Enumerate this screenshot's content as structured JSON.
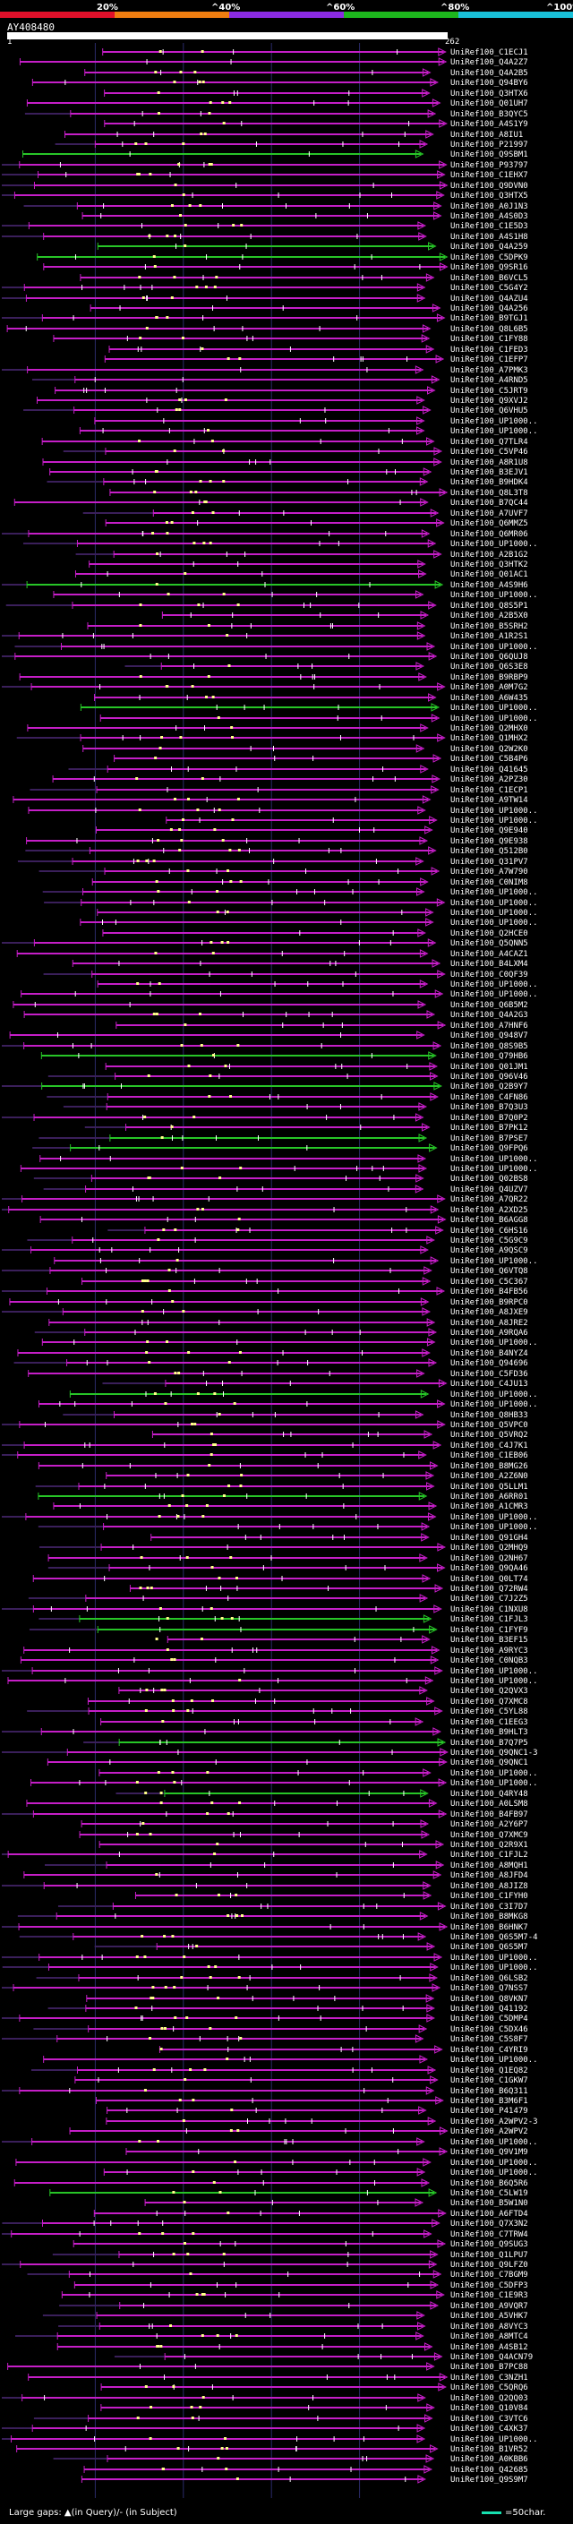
{
  "query": {
    "id": "AY408480",
    "start": "1",
    "end": "262"
  },
  "scale": {
    "ticks": [
      "20%",
      "^40%",
      "^60%",
      "^80%",
      "^100%"
    ],
    "colors": [
      "#e0102a",
      "#ef7d10",
      "#8b2be2",
      "#1db71d",
      "#19c0d8"
    ]
  },
  "colors": {
    "hit_line": "#c51ec7",
    "best_line": "#27c527",
    "insert": "#ffff88",
    "gap": "#ffffff"
  },
  "legend": {
    "left": "Large gaps: ▲(in Query)/- (in Subject)",
    "right": "=50char."
  },
  "hits": [
    "UniRef100_C1ECJ1",
    "UniRef100_Q4A2Z7",
    "UniRef100_Q4A2B5",
    "UniRef100_Q94BY6",
    "UniRef100_Q3HTX6",
    "UniRef100_Q01UH7",
    "UniRef100_B3QYC5",
    "UniRef100_A4S1Y9",
    "UniRef100_A8IU1",
    "UniRef100_P21997",
    "UniRef100_Q9SBM1",
    "UniRef100_P93797",
    "UniRef100_C1EHX7",
    "UniRef100_Q9DVN0",
    "UniRef100_Q3HTX5",
    "UniRef100_A0J1N3",
    "UniRef100_A4S0D3",
    "UniRef100_C1E5D3",
    "UniRef100_A4S1H8",
    "UniRef100_Q4A259",
    "UniRef100_C5DPK9",
    "UniRef100_Q9SR16",
    "UniRef100_B6VCL5",
    "UniRef100_C5G4Y2",
    "UniRef100_Q4AZU4",
    "UniRef100_Q4A256",
    "UniRef100_B9TGJ1",
    "UniRef100_Q8L6B5",
    "UniRef100_C1FY88",
    "UniRef100_C1FED3",
    "UniRef100_C1EFP7",
    "UniRef100_A7PMK3",
    "UniRef100_A4RND5",
    "UniRef100_C5JRT9",
    "UniRef100_Q9XVJ2",
    "UniRef100_Q6VHU5",
    "UniRef100_UP1000..",
    "UniRef100_UP1000..",
    "UniRef100_Q7TLR4",
    "UniRef100_C5VP46",
    "UniRef100_A8R1U8",
    "UniRef100_B3EJV1",
    "UniRef100_B9HDK4",
    "UniRef100_Q8L3T8",
    "UniRef100_B7QC44",
    "UniRef100_A7UVF7",
    "UniRef100_Q6MMZ5",
    "UniRef100_Q6MR06",
    "UniRef100_UP1000..",
    "UniRef100_A2B1G2",
    "UniRef100_Q3HTK2",
    "UniRef100_Q01AC1",
    "UniRef100_A4S9H6",
    "UniRef100_UP1000..",
    "UniRef100_Q8S5P1",
    "UniRef100_A2B5X0",
    "UniRef100_B5SRH2",
    "UniRef100_A1R2S1",
    "UniRef100_UP1000..",
    "UniRef100_Q6QUJ8",
    "UniRef100_Q6S3E8",
    "UniRef100_B9RBP9",
    "UniRef100_A0M7G2",
    "UniRef100_A6W435",
    "UniRef100_UP1000..",
    "UniRef100_UP1000..",
    "UniRef100_Q2MHX0",
    "UniRef100_Q1MHX2",
    "UniRef100_Q2W2K0",
    "UniRef100_C5B4P6",
    "UniRef100_Q41645",
    "UniRef100_A2PZ30",
    "UniRef100_C1ECP1",
    "UniRef100_A9TW14",
    "UniRef100_UP1000..",
    "UniRef100_UP1000..",
    "UniRef100_Q9E940",
    "UniRef100_Q9E938",
    "UniRef100_Q512B0",
    "UniRef100_Q31PV7",
    "UniRef100_A7W790",
    "UniRef100_C0NIM8",
    "UniRef100_UP1000..",
    "UniRef100_UP1000..",
    "UniRef100_UP1000..",
    "UniRef100_UP1000..",
    "UniRef100_Q2HCE0",
    "UniRef100_Q5QNN5",
    "UniRef100_A4CAZ1",
    "UniRef100_B4LXM4",
    "UniRef100_C0QF39",
    "UniRef100_UP1000..",
    "UniRef100_UP1000..",
    "UniRef100_Q6B5M2",
    "UniRef100_Q4A2G3",
    "UniRef100_A7HNF6",
    "UniRef100_Q948V7",
    "UniRef100_Q8S9B5",
    "UniRef100_Q79HB6",
    "UniRef100_Q01JM1",
    "UniRef100_Q96V46",
    "UniRef100_Q2B9Y7",
    "UniRef100_C4FN86",
    "UniRef100_B7Q3U3",
    "UniRef100_B7Q0P2",
    "UniRef100_B7PK12",
    "UniRef100_B7PSE7",
    "UniRef100_Q9FPQ6",
    "UniRef100_UP1000..",
    "UniRef100_UP1000..",
    "UniRef100_Q02BS8",
    "UniRef100_Q4UZV7",
    "UniRef100_A7QR22",
    "UniRef100_A2XD25",
    "UniRef100_B6AGG8",
    "UniRef100_C6HS16",
    "UniRef100_C5G9C9",
    "UniRef100_A9QSC9",
    "UniRef100_UP1000..",
    "UniRef100_Q6VTQ8",
    "UniRef100_C5C367",
    "UniRef100_B4FB56",
    "UniRef100_B9RPC0",
    "UniRef100_A8JXE9",
    "UniRef100_A8JRE2",
    "UniRef100_A9RQA6",
    "UniRef100_UP1000..",
    "UniRef100_B4NYZ4",
    "UniRef100_Q94696",
    "UniRef100_C5FD36",
    "UniRef100_C4JU13",
    "UniRef100_UP1000..",
    "UniRef100_UP1000..",
    "UniRef100_Q8HB33",
    "UniRef100_Q5VPC0",
    "UniRef100_Q5VRQ2",
    "UniRef100_C4J7K1",
    "UniRef100_C1EB06",
    "UniRef100_B8MG26",
    "UniRef100_A2Z6N0",
    "UniRef100_Q5LLM1",
    "UniRef100_A6RR01",
    "UniRef100_A1CMR3",
    "UniRef100_UP1000..",
    "UniRef100_UP1000..",
    "UniRef100_Q91GH4",
    "UniRef100_Q2MHQ9",
    "UniRef100_Q2NH67",
    "UniRef100_Q9QA46",
    "UniRef100_Q0LT74",
    "UniRef100_Q72RW4",
    "UniRef100_C7J2Z5",
    "UniRef100_C1NXU8",
    "UniRef100_C1FJL3",
    "UniRef100_C1FYF9",
    "UniRef100_B3EF15",
    "UniRef100_A9RYC3",
    "UniRef100_C0NQB3",
    "UniRef100_UP1000..",
    "UniRef100_UP1000..",
    "UniRef100_Q2QVX3",
    "UniRef100_Q7XMC8",
    "UniRef100_C5YL88",
    "UniRef100_C1EEG3",
    "UniRef100_B9HLT3",
    "UniRef100_B7Q7P5",
    "UniRef100_Q9QNC1-3",
    "UniRef100_Q9QNC1",
    "UniRef100_UP1000..",
    "UniRef100_UP1000..",
    "UniRef100_Q4RY48",
    "UniRef100_A0LSM8",
    "UniRef100_B4FB97",
    "UniRef100_A2Y6P7",
    "UniRef100_Q7XMC9",
    "UniRef100_Q2R9X1",
    "UniRef100_C1FJL2",
    "UniRef100_A8MQH1",
    "UniRef100_A8JFD4",
    "UniRef100_A8JIZ8",
    "UniRef100_C1FYH0",
    "UniRef100_C3I7D7",
    "UniRef100_B8MKG8",
    "UniRef100_B6HNK7",
    "UniRef100_Q6S5M7-4",
    "UniRef100_Q6S5M7",
    "UniRef100_UP1000..",
    "UniRef100_UP1000..",
    "UniRef100_Q6LSB2",
    "UniRef100_Q7NSS7",
    "UniRef100_Q8VKN7",
    "UniRef100_Q41192",
    "UniRef100_C5DMP4",
    "UniRef100_C5DX46",
    "UniRef100_C5S8F7",
    "UniRef100_C4YRI9",
    "UniRef100_UP1000..",
    "UniRef100_Q1EQ82",
    "UniRef100_C1GKW7",
    "UniRef100_B6Q311",
    "UniRef100_B3M6F1",
    "UniRef100_P41479",
    "UniRef100_A2WPV2-3",
    "UniRef100_A2WPV2",
    "UniRef100_UP1000..",
    "UniRef100_Q9V1M9",
    "UniRef100_UP1000..",
    "UniRef100_UP1000..",
    "UniRef100_B6Q5R6",
    "UniRef100_C5LW19",
    "UniRef100_B5W1N0",
    "UniRef100_A6FTD4",
    "UniRef100_Q7X3N2",
    "UniRef100_C7TRW4",
    "UniRef100_Q9SUG3",
    "UniRef100_Q1LPU7",
    "UniRef100_Q9LFZ0",
    "UniRef100_C7BGM9",
    "UniRef100_C5DFP3",
    "UniRef100_C1E9R3",
    "UniRef100_A9VQR7",
    "UniRef100_A5VHK7",
    "UniRef100_A8VYC3",
    "UniRef100_A8MTC4",
    "UniRef100_A4SB12",
    "UniRef100_Q4ACN79",
    "UniRef100_B7PC88",
    "UniRef100_C3NZH1",
    "UniRef100_C5QRQ6",
    "UniRef100_Q2QQ03",
    "UniRef100_Q10V84",
    "UniRef100_C3VTC6",
    "UniRef100_C4XK37",
    "UniRef100_UP1000..",
    "UniRef100_B1VR52",
    "UniRef100_A0KBB6",
    "UniRef100_Q42685",
    "UniRef100_Q9S9M7"
  ]
}
